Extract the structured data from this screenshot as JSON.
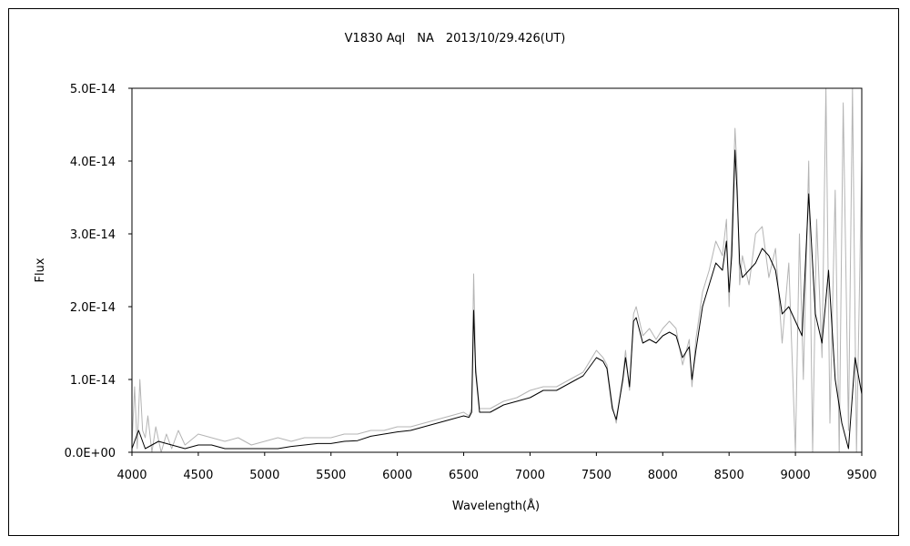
{
  "chart_data": {
    "type": "line",
    "title": "V1830 Aql　NA　2013/10/29.426(UT)",
    "xlabel": "Wavelength(Å)",
    "ylabel": "Flux",
    "xlim": [
      4000,
      9500
    ],
    "ylim": [
      0,
      5e-14
    ],
    "x_ticks": [
      4000,
      4500,
      5000,
      5500,
      6000,
      6500,
      7000,
      7500,
      8000,
      8500,
      9000,
      9500
    ],
    "x_tick_labels": [
      "4000",
      "4500",
      "5000",
      "5500",
      "6000",
      "6500",
      "7000",
      "7500",
      "8000",
      "8500",
      "9000",
      "9500"
    ],
    "y_ticks": [
      0,
      1e-14,
      2e-14,
      3e-14,
      4e-14,
      5e-14
    ],
    "y_tick_labels": [
      "0.0E+00",
      "1.0E-14",
      "2.0E-14",
      "3.0E-14",
      "4.0E-14",
      "5.0E-14"
    ],
    "grid": false,
    "legend": "none",
    "series": [
      {
        "color": "#000000",
        "x": [
          4000,
          4050,
          4100,
          4150,
          4200,
          4300,
          4400,
          4500,
          4600,
          4700,
          4800,
          4900,
          5000,
          5100,
          5200,
          5300,
          5400,
          5500,
          5600,
          5700,
          5800,
          5900,
          6000,
          6100,
          6200,
          6300,
          6400,
          6500,
          6540,
          6560,
          6575,
          6590,
          6620,
          6700,
          6800,
          6900,
          7000,
          7100,
          7200,
          7300,
          7400,
          7500,
          7550,
          7580,
          7620,
          7650,
          7700,
          7720,
          7750,
          7780,
          7800,
          7850,
          7900,
          7950,
          8000,
          8050,
          8100,
          8150,
          8200,
          8220,
          8250,
          8300,
          8350,
          8400,
          8450,
          8480,
          8500,
          8520,
          8545,
          8560,
          8580,
          8600,
          8650,
          8700,
          8750,
          8800,
          8850,
          8900,
          8950,
          9000,
          9050,
          9100,
          9150,
          9200,
          9250,
          9300,
          9350,
          9400,
          9450,
          9500
        ],
        "y": [
          5e-16,
          3e-15,
          5e-16,
          1e-15,
          1.5e-15,
          1e-15,
          5e-16,
          1e-15,
          1e-15,
          5e-16,
          5e-16,
          5e-16,
          5e-16,
          5e-16,
          8e-16,
          1e-15,
          1.2e-15,
          1.2e-15,
          1.5e-15,
          1.6e-15,
          2.2e-15,
          2.5e-15,
          2.8e-15,
          3e-15,
          3.5e-15,
          4e-15,
          4.5e-15,
          5e-15,
          4.8e-15,
          5.5e-15,
          1.95e-14,
          1.1e-14,
          5.5e-15,
          5.5e-15,
          6.5e-15,
          7e-15,
          7.5e-15,
          8.5e-15,
          8.5e-15,
          9.5e-15,
          1.05e-14,
          1.3e-14,
          1.25e-14,
          1.15e-14,
          6e-15,
          4.5e-15,
          1e-14,
          1.3e-14,
          9e-15,
          1.8e-14,
          1.85e-14,
          1.5e-14,
          1.55e-14,
          1.5e-14,
          1.6e-14,
          1.65e-14,
          1.6e-14,
          1.3e-14,
          1.45e-14,
          1e-14,
          1.4e-14,
          2e-14,
          2.3e-14,
          2.6e-14,
          2.5e-14,
          2.9e-14,
          2.2e-14,
          2.7e-14,
          4.15e-14,
          3.6e-14,
          2.6e-14,
          2.4e-14,
          2.5e-14,
          2.6e-14,
          2.8e-14,
          2.7e-14,
          2.5e-14,
          1.9e-14,
          2e-14,
          1.8e-14,
          1.6e-14,
          3.55e-14,
          1.9e-14,
          1.5e-14,
          2.5e-14,
          1e-14,
          4e-15,
          5e-16,
          1.3e-14,
          8e-15
        ]
      },
      {
        "color": "#b4b4b4",
        "x": [
          4000,
          4020,
          4040,
          4060,
          4080,
          4100,
          4120,
          4150,
          4180,
          4220,
          4260,
          4300,
          4350,
          4400,
          4500,
          4600,
          4700,
          4800,
          4900,
          5000,
          5100,
          5200,
          5300,
          5400,
          5500,
          5600,
          5700,
          5800,
          5900,
          6000,
          6100,
          6200,
          6300,
          6400,
          6500,
          6540,
          6560,
          6575,
          6590,
          6620,
          6700,
          6800,
          6900,
          7000,
          7100,
          7200,
          7300,
          7400,
          7500,
          7550,
          7580,
          7620,
          7650,
          7700,
          7720,
          7750,
          7780,
          7800,
          7850,
          7900,
          7950,
          8000,
          8050,
          8100,
          8150,
          8200,
          8220,
          8250,
          8300,
          8350,
          8400,
          8450,
          8480,
          8500,
          8520,
          8545,
          8560,
          8580,
          8600,
          8650,
          8700,
          8750,
          8800,
          8850,
          8900,
          8950,
          9000,
          9030,
          9060,
          9100,
          9130,
          9160,
          9200,
          9230,
          9260,
          9300,
          9330,
          9360,
          9400,
          9430,
          9460,
          9500
        ],
        "y": [
          1e-15,
          9e-15,
          5e-16,
          1e-14,
          3e-15,
          2e-15,
          5e-15,
          0.0,
          3.5e-15,
          0.0,
          2.5e-15,
          5e-16,
          3e-15,
          1e-15,
          2.5e-15,
          2e-15,
          1.5e-15,
          2e-15,
          1e-15,
          1.5e-15,
          2e-15,
          1.5e-15,
          2e-15,
          2e-15,
          2e-15,
          2.5e-15,
          2.5e-15,
          3e-15,
          3e-15,
          3.5e-15,
          3.5e-15,
          4e-15,
          4.5e-15,
          5e-15,
          5.5e-15,
          5e-15,
          6e-15,
          2.45e-14,
          1.2e-14,
          6e-15,
          6e-15,
          7e-15,
          7.5e-15,
          8.5e-15,
          9e-15,
          9e-15,
          1e-14,
          1.1e-14,
          1.4e-14,
          1.3e-14,
          1.2e-14,
          6.5e-15,
          4e-15,
          1.05e-14,
          1.4e-14,
          8.5e-15,
          1.9e-14,
          2e-14,
          1.6e-14,
          1.7e-14,
          1.55e-14,
          1.7e-14,
          1.8e-14,
          1.7e-14,
          1.2e-14,
          1.55e-14,
          9e-15,
          1.55e-14,
          2.2e-14,
          2.5e-14,
          2.9e-14,
          2.7e-14,
          3.2e-14,
          2e-14,
          3e-14,
          4.45e-14,
          3.9e-14,
          2.3e-14,
          2.7e-14,
          2.3e-14,
          3e-14,
          3.1e-14,
          2.4e-14,
          2.8e-14,
          1.5e-14,
          2.6e-14,
          0.0,
          3e-14,
          1e-14,
          4e-14,
          0.0,
          3.2e-14,
          1.3e-14,
          5e-14,
          4e-15,
          3.6e-14,
          0.0,
          4.8e-14,
          3e-15,
          5e-14,
          0.0,
          4e-14
        ]
      }
    ]
  }
}
